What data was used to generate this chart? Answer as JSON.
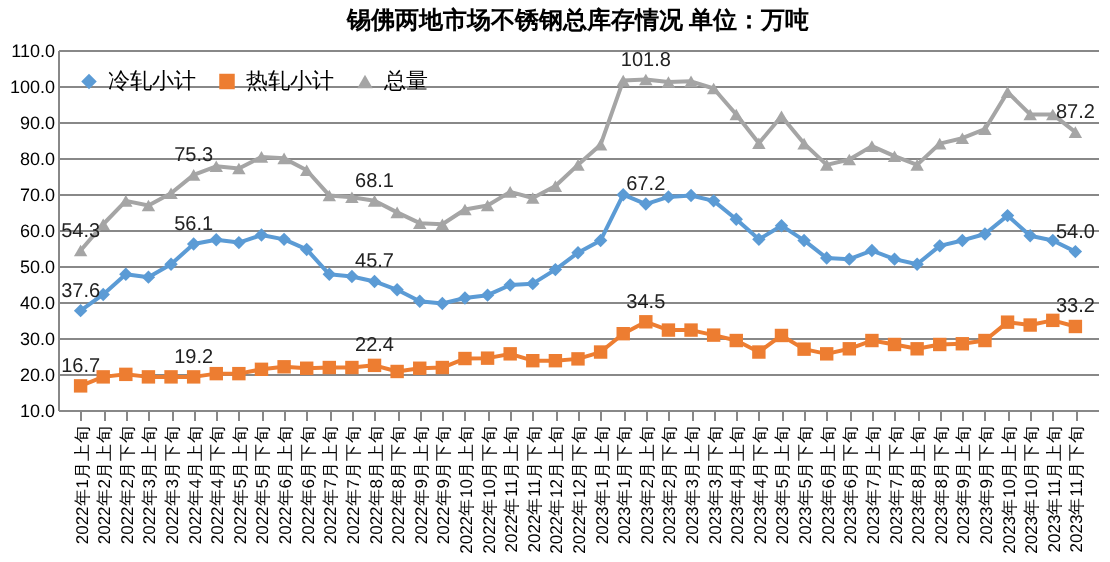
{
  "chart_data": {
    "type": "line",
    "title": "锡佛两地市场不锈钢总库存情况   单位：万吨",
    "categories": [
      "2022年1月上旬",
      "2022年2月上旬",
      "2022年2月下旬",
      "2022年3月上旬",
      "2022年3月下旬",
      "2022年4月上旬",
      "2022年4月下旬",
      "2022年5月上旬",
      "2022年5月下旬",
      "2022年6月上旬",
      "2022年6月下旬",
      "2022年7月上旬",
      "2022年7月下旬",
      "2022年8月上旬",
      "2022年8月下旬",
      "2022年9月上旬",
      "2022年9月下旬",
      "2022年10月上旬",
      "2022年10月下旬",
      "2022年11月上旬",
      "2022年11月下旬",
      "2022年12月上旬",
      "2022年12月下旬",
      "2023年1月上旬",
      "2023年1月下旬",
      "2023年2月上旬",
      "2023年2月下旬",
      "2023年3月上旬",
      "2023年3月下旬",
      "2023年4月上旬",
      "2023年4月下旬",
      "2023年5月上旬",
      "2023年5月下旬",
      "2023年6月上旬",
      "2023年6月下旬",
      "2023年7月上旬",
      "2023年7月下旬",
      "2023年8月上旬",
      "2023年8月下旬",
      "2023年9月上旬",
      "2023年9月下旬",
      "2023年10月上旬",
      "2023年10月下旬",
      "2023年11月上旬",
      "2023年11月下旬"
    ],
    "series": [
      {
        "name": "冷轧小计",
        "color": "#5b9bd5",
        "marker": "diamond",
        "values": [
          37.6,
          42.1,
          47.7,
          46.9,
          50.5,
          56.1,
          57.3,
          56.5,
          58.6,
          57.4,
          54.6,
          47.7,
          47.1,
          45.7,
          43.4,
          40.2,
          39.6,
          41.1,
          41.9,
          44.7,
          45.1,
          49.0,
          53.7,
          57.1,
          69.8,
          67.2,
          69.2,
          69.6,
          68.1,
          63.0,
          57.4,
          61.2,
          57.1,
          52.2,
          51.9,
          54.3,
          51.9,
          50.5,
          55.6,
          57.1,
          58.9,
          64.0,
          58.4,
          57.1,
          54.0
        ],
        "value_labels": [
          "37.6",
          null,
          null,
          null,
          null,
          "56.1",
          null,
          null,
          null,
          null,
          null,
          null,
          null,
          "45.7",
          null,
          null,
          null,
          null,
          null,
          null,
          null,
          null,
          null,
          null,
          null,
          "67.2",
          null,
          null,
          null,
          null,
          null,
          null,
          null,
          null,
          null,
          null,
          null,
          null,
          null,
          null,
          null,
          null,
          null,
          null,
          "54.0"
        ]
      },
      {
        "name": "热轧小计",
        "color": "#ed7d31",
        "marker": "square",
        "values": [
          16.7,
          19.2,
          19.9,
          19.2,
          19.2,
          19.2,
          20.1,
          20.1,
          21.3,
          22.0,
          21.6,
          21.8,
          21.8,
          22.4,
          20.7,
          21.6,
          21.8,
          24.3,
          24.4,
          25.6,
          23.7,
          23.7,
          24.2,
          26.1,
          31.2,
          34.5,
          32.2,
          32.2,
          30.8,
          29.3,
          26.1,
          30.7,
          26.9,
          25.6,
          27.0,
          29.3,
          28.2,
          27.0,
          28.2,
          28.4,
          29.3,
          34.4,
          33.6,
          34.9,
          33.2
        ],
        "value_labels": [
          "16.7",
          null,
          null,
          null,
          null,
          "19.2",
          null,
          null,
          null,
          null,
          null,
          null,
          null,
          "22.4",
          null,
          null,
          null,
          null,
          null,
          null,
          null,
          null,
          null,
          null,
          null,
          "34.5",
          null,
          null,
          null,
          null,
          null,
          null,
          null,
          null,
          null,
          null,
          null,
          null,
          null,
          null,
          null,
          null,
          null,
          null,
          "33.2"
        ]
      },
      {
        "name": "总量",
        "color": "#a5a5a5",
        "marker": "triangle",
        "values": [
          54.3,
          61.6,
          68.1,
          66.8,
          70.2,
          75.3,
          77.7,
          77.1,
          80.3,
          79.9,
          76.6,
          69.6,
          69.1,
          68.1,
          64.9,
          61.9,
          61.6,
          65.7,
          66.8,
          70.6,
          68.9,
          72.2,
          78.1,
          83.7,
          101.5,
          101.8,
          101.1,
          101.3,
          99.3,
          92.1,
          84.1,
          91.6,
          84.0,
          78.1,
          79.6,
          83.3,
          80.5,
          78.1,
          84.0,
          85.5,
          88.0,
          98.3,
          92.1,
          92.1,
          87.2
        ],
        "value_labels": [
          "54.3",
          null,
          null,
          null,
          null,
          "75.3",
          null,
          null,
          null,
          null,
          null,
          null,
          null,
          "68.1",
          null,
          null,
          null,
          null,
          null,
          null,
          null,
          null,
          null,
          null,
          null,
          "101.8",
          null,
          null,
          null,
          null,
          null,
          null,
          null,
          null,
          null,
          null,
          null,
          null,
          null,
          null,
          null,
          null,
          null,
          null,
          "87.2"
        ]
      }
    ],
    "ylim": [
      10,
      110
    ],
    "yticks": [
      {
        "value": 10,
        "label": "10.0"
      },
      {
        "value": 20,
        "label": "20.0"
      },
      {
        "value": 30,
        "label": "30.0"
      },
      {
        "value": 40,
        "label": "40.0"
      },
      {
        "value": 50,
        "label": "50.0"
      },
      {
        "value": 60,
        "label": "60.0"
      },
      {
        "value": 70,
        "label": "70.0"
      },
      {
        "value": 80,
        "label": "80.0"
      },
      {
        "value": 90,
        "label": "90.0"
      },
      {
        "value": 100,
        "label": "100.0"
      },
      {
        "value": 110,
        "label": "110.0"
      }
    ],
    "grid": "y",
    "legend": "top left"
  }
}
